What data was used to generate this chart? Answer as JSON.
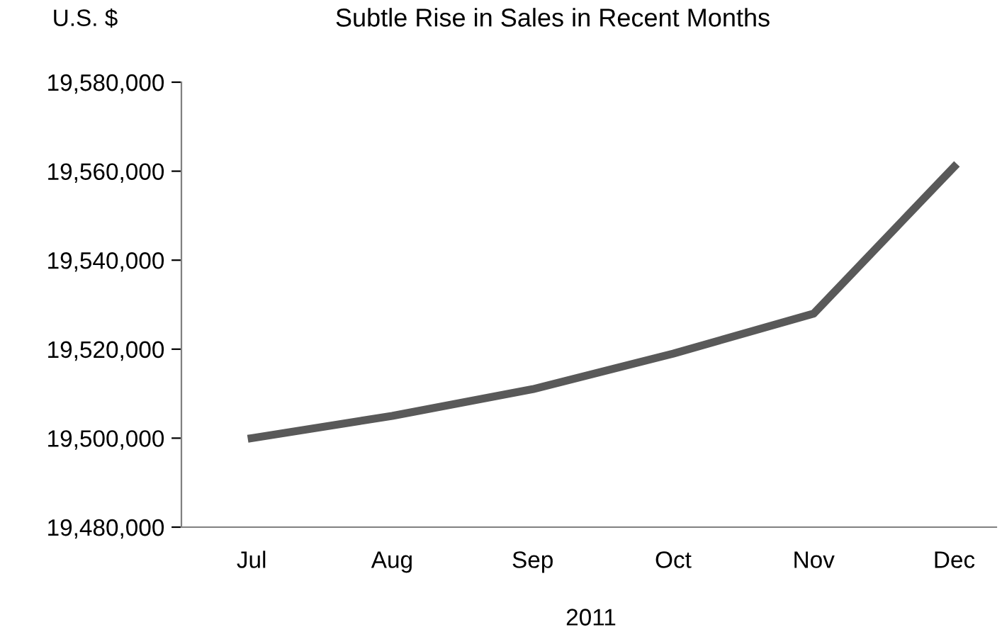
{
  "chart_data": {
    "type": "line",
    "title": "Subtle Rise in Sales in Recent Months",
    "ylabel": "U.S. $",
    "xlabel": "2011",
    "categories": [
      "Jul",
      "Aug",
      "Sep",
      "Oct",
      "Nov",
      "Dec"
    ],
    "series": [
      {
        "color": "#595959",
        "values": [
          19500000,
          19505000,
          19511000,
          19519000,
          19528000,
          19561000
        ]
      }
    ],
    "ylim": [
      19480000,
      19580000
    ],
    "yticks": [
      {
        "value": 19480000,
        "label": "19,480,000"
      },
      {
        "value": 19500000,
        "label": "19,500,000"
      },
      {
        "value": 19520000,
        "label": "19,520,000"
      },
      {
        "value": 19540000,
        "label": "19,540,000"
      },
      {
        "value": 19560000,
        "label": "19,560,000"
      },
      {
        "value": 19580000,
        "label": "19,580,000"
      }
    ],
    "grid": false,
    "legend": false,
    "marker": "none",
    "line_style": "solid"
  }
}
